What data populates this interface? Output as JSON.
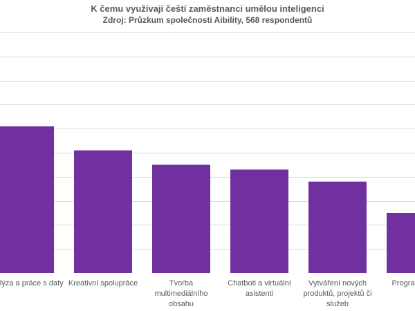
{
  "chart_data": {
    "type": "bar",
    "title": "K čemu využívají čeští zaměstnanci umělou inteligenci",
    "subtitle": "Zdroj: Průzkum společnosti Aibility, 568 respondentů",
    "categories": [
      "Analýza a práce s daty",
      "Kreativní spolupráce",
      "Tvorba multimediálního obsahu",
      "Chatboti a virtuální asistenti",
      "Vytváření nových produktů, projektů či služeb",
      "Programování"
    ],
    "category_lines": [
      [
        "Analýza a práce s daty"
      ],
      [
        "Kreativní spolupráce"
      ],
      [
        "Tvorba",
        "multimediálního",
        "obsahu"
      ],
      [
        "Chatboti a virtuální",
        "asistenti"
      ],
      [
        "Vytváření nových",
        "produktů, projektů či",
        "služeb"
      ],
      [
        "Programování"
      ]
    ],
    "values": [
      61,
      51,
      45,
      43,
      38,
      25
    ],
    "ylim": [
      0,
      100
    ],
    "grid": true,
    "xlabel": "",
    "ylabel": "",
    "bar_color": "#7030A0",
    "grid_color": "#d9d9d9"
  }
}
